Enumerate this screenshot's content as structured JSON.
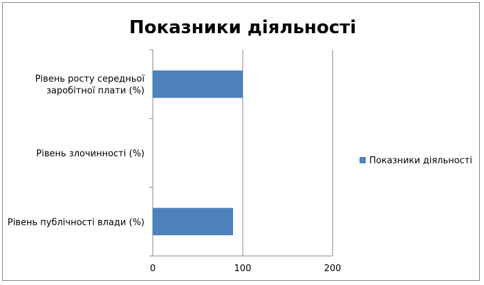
{
  "chart_data": {
    "type": "bar",
    "orientation": "horizontal",
    "title": "Показники діяльності",
    "categories": [
      "Рівень публічності влади (%)",
      "Рівень злочинності (%)",
      "Рівень росту середньої заробітної плати (%)"
    ],
    "series": [
      {
        "name": "Показники діяльності",
        "values": [
          89,
          0,
          100
        ],
        "color": "#4F81BD"
      }
    ],
    "xlim": [
      0,
      200
    ],
    "xticks": [
      "0",
      "100",
      "200"
    ],
    "grid": "vertical",
    "legend": "right"
  }
}
